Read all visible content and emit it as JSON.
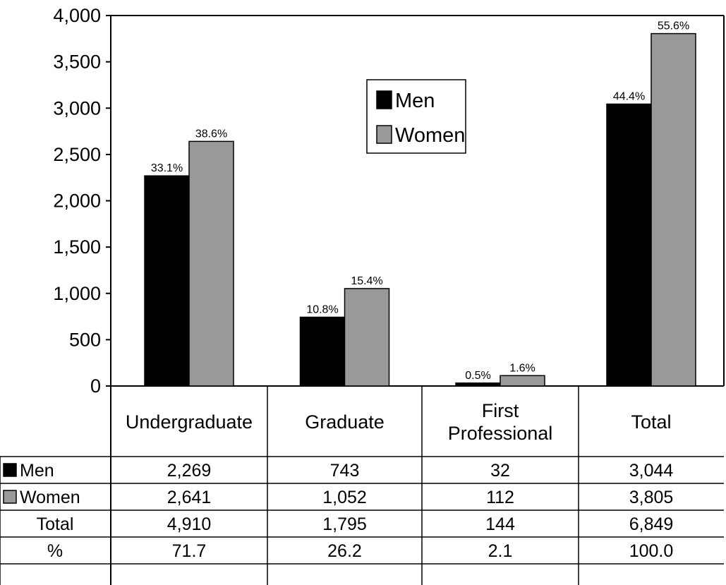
{
  "chart_data": {
    "type": "bar",
    "categories": [
      "Undergraduate",
      "Graduate",
      "First Professional",
      "Total"
    ],
    "category_lines": [
      [
        "Undergraduate"
      ],
      [
        "Graduate"
      ],
      [
        "First",
        "Professional"
      ],
      [
        "Total"
      ]
    ],
    "ylim": [
      0,
      4000
    ],
    "yticks": [
      {
        "value": 0,
        "label": "0"
      },
      {
        "value": 500,
        "label": "500"
      },
      {
        "value": 1000,
        "label": "1,000"
      },
      {
        "value": 1500,
        "label": "1,500"
      },
      {
        "value": 2000,
        "label": "2,000"
      },
      {
        "value": 2500,
        "label": "2,500"
      },
      {
        "value": 3000,
        "label": "3,000"
      },
      {
        "value": 3500,
        "label": "3,500"
      },
      {
        "value": 4000,
        "label": "4,000"
      }
    ],
    "series": [
      {
        "name": "Men",
        "color": "#000000",
        "values": [
          2269,
          743,
          32,
          3044
        ],
        "labels": [
          "33.1%",
          "10.8%",
          "0.5%",
          "44.4%"
        ]
      },
      {
        "name": "Women",
        "color": "#999999",
        "values": [
          2641,
          1052,
          112,
          3805
        ],
        "labels": [
          "38.6%",
          "15.4%",
          "1.6%",
          "55.6%"
        ]
      }
    ],
    "legend": {
      "placement": "top-center",
      "items": [
        "Men",
        "Women"
      ]
    },
    "table": {
      "rows": [
        {
          "label": "Men",
          "swatch": "#000000",
          "cells": [
            "2,269",
            "743",
            "32",
            "3,044"
          ]
        },
        {
          "label": "Women",
          "swatch": "#999999",
          "cells": [
            "2,641",
            "1,052",
            "112",
            "3,805"
          ]
        },
        {
          "label": "Total",
          "swatch": null,
          "cells": [
            "4,910",
            "1,795",
            "144",
            "6,849"
          ]
        },
        {
          "label": "%",
          "swatch": null,
          "cells": [
            "71.7",
            "26.2",
            "2.1",
            "100.0"
          ]
        }
      ]
    }
  }
}
